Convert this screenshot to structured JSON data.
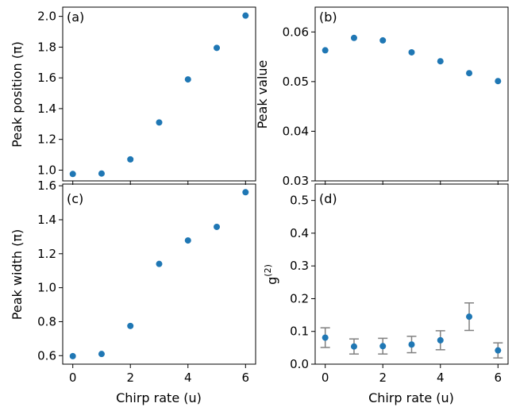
{
  "colors": {
    "marker": "#1f77b4",
    "errorbar": "#808080",
    "axis": "#000000",
    "background": "#ffffff"
  },
  "chart_data": [
    {
      "id": "a",
      "type": "scatter",
      "panel_label": "(a)",
      "title": "",
      "xlabel": "",
      "ylabel": "Peak position (π)",
      "x": [
        0,
        1,
        2,
        3,
        4,
        5,
        6
      ],
      "y": [
        0.975,
        0.978,
        1.07,
        1.31,
        1.59,
        1.795,
        2.005
      ],
      "xlim": [
        -0.35,
        6.35
      ],
      "ylim": [
        0.93,
        2.06
      ],
      "xticks": [
        0,
        2,
        4,
        6
      ],
      "xtick_labels_shown": false,
      "yticks": [
        1.0,
        1.2,
        1.4,
        1.6,
        1.8,
        2.0
      ],
      "ytick_labels": [
        "1.0",
        "1.2",
        "1.4",
        "1.6",
        "1.8",
        "2.0"
      ],
      "grid": false,
      "legend": "none"
    },
    {
      "id": "b",
      "type": "scatter",
      "panel_label": "(b)",
      "title": "",
      "xlabel": "",
      "ylabel": "Peak value",
      "x": [
        0,
        1,
        2,
        3,
        4,
        5,
        6
      ],
      "y": [
        0.0563,
        0.0588,
        0.0583,
        0.0559,
        0.0541,
        0.0517,
        0.0501
      ],
      "xlim": [
        -0.35,
        6.35
      ],
      "ylim": [
        0.03,
        0.065
      ],
      "xticks": [
        0,
        2,
        4,
        6
      ],
      "xtick_labels_shown": false,
      "yticks": [
        0.03,
        0.04,
        0.05,
        0.06
      ],
      "ytick_labels": [
        "0.03",
        "0.04",
        "0.05",
        "0.06"
      ],
      "grid": false,
      "legend": "none"
    },
    {
      "id": "c",
      "type": "scatter",
      "panel_label": "(c)",
      "title": "",
      "xlabel": "Chirp rate (u)",
      "ylabel": "Peak width (π)",
      "x": [
        0,
        1,
        2,
        3,
        4,
        5,
        6
      ],
      "y": [
        0.597,
        0.61,
        0.775,
        1.14,
        1.278,
        1.358,
        1.562
      ],
      "xlim": [
        -0.35,
        6.35
      ],
      "ylim": [
        0.55,
        1.61
      ],
      "xticks": [
        0,
        2,
        4,
        6
      ],
      "xtick_labels": [
        "0",
        "2",
        "4",
        "6"
      ],
      "xtick_labels_shown": true,
      "yticks": [
        0.6,
        0.8,
        1.0,
        1.2,
        1.4,
        1.6
      ],
      "ytick_labels": [
        "0.6",
        "0.8",
        "1.0",
        "1.2",
        "1.4",
        "1.6"
      ],
      "grid": false,
      "legend": "none"
    },
    {
      "id": "d",
      "type": "scatter",
      "panel_label": "(d)",
      "title": "",
      "xlabel": "Chirp rate (u)",
      "ylabel": "g",
      "ylabel_superscript": "(2)",
      "x": [
        0,
        1,
        2,
        3,
        4,
        5,
        6
      ],
      "y": [
        0.081,
        0.054,
        0.055,
        0.06,
        0.073,
        0.145,
        0.042
      ],
      "yerr": [
        0.03,
        0.023,
        0.024,
        0.025,
        0.029,
        0.042,
        0.023
      ],
      "xlim": [
        -0.35,
        6.35
      ],
      "ylim": [
        0.0,
        0.55
      ],
      "xticks": [
        0,
        2,
        4,
        6
      ],
      "xtick_labels": [
        "0",
        "2",
        "4",
        "6"
      ],
      "xtick_labels_shown": true,
      "yticks": [
        0.0,
        0.1,
        0.2,
        0.3,
        0.4,
        0.5
      ],
      "ytick_labels": [
        "0.0",
        "0.1",
        "0.2",
        "0.3",
        "0.4",
        "0.5"
      ],
      "grid": false,
      "legend": "none"
    }
  ]
}
